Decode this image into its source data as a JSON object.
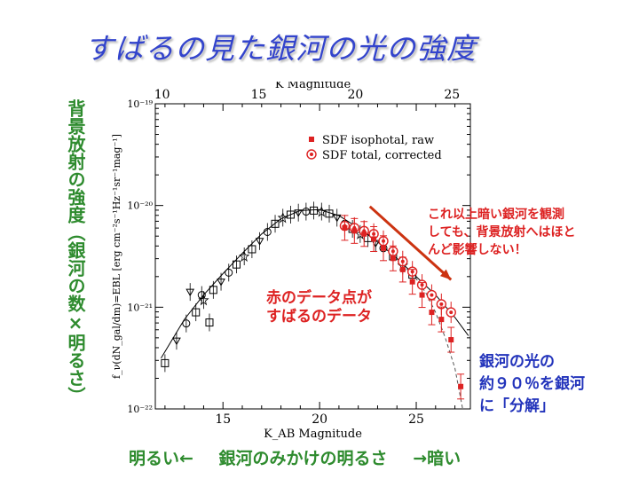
{
  "title": "すばるの見た銀河の光の強度",
  "y_side_label": "背景放射の強度（銀河の数×明るさ）",
  "annotations": {
    "top_right": [
      "これ以上暗い銀河を観測",
      "しても、背景放射へはほと",
      "んど影響しない！"
    ],
    "middle": [
      "赤のデータ点が",
      "すばるのデータ"
    ],
    "bottom_right": [
      "銀河の光の",
      "約９０％を銀河",
      "に「分解」"
    ]
  },
  "bottom_axis_text": {
    "left": "明るい←",
    "center": "銀河のみかけの明るさ",
    "right": "→暗い"
  },
  "colors": {
    "title": "#3344cc",
    "green": "#2e8b2e",
    "red": "#dd2222",
    "blue": "#2233bb"
  },
  "chart_data": {
    "type": "scatter",
    "xlabel": "K_AB Magnitude",
    "top_xlabel": "K Magnitude",
    "ylabel": "f_ν(dN_gal/dm)=EBL [erg cm⁻²s⁻¹Hz⁻¹sr⁻¹mag⁻¹]",
    "xlim": [
      11.5,
      27.8
    ],
    "ylim_log10": [
      -22,
      -19
    ],
    "x_ticks": [
      15,
      20,
      25
    ],
    "top_x_ticks": [
      10,
      15,
      20,
      25
    ],
    "top_x_offset": 1.85,
    "y_ticks": [
      -22,
      -21,
      -20,
      -19
    ],
    "y_tick_labels": [
      "10⁻²²",
      "10⁻²¹",
      "10⁻²⁰",
      "10⁻¹⁹"
    ],
    "legend": [
      "SDF isophotal, raw",
      "SDF total, corrected"
    ],
    "legend_placement": "top-right",
    "series": [
      {
        "name": "SDF isophotal, raw",
        "marker": "filled-square",
        "points": [
          [
            21.3,
            -20.22
          ],
          [
            21.8,
            -20.25
          ],
          [
            22.3,
            -20.28
          ],
          [
            22.8,
            -20.33
          ],
          [
            23.3,
            -20.42
          ],
          [
            23.8,
            -20.52
          ],
          [
            24.3,
            -20.63
          ],
          [
            24.8,
            -20.75
          ],
          [
            25.3,
            -20.88
          ],
          [
            25.8,
            -21.05
          ],
          [
            26.3,
            -21.12
          ],
          [
            26.8,
            -21.32
          ],
          [
            27.3,
            -21.78
          ]
        ]
      },
      {
        "name": "SDF total, corrected",
        "marker": "circled-dot",
        "points": [
          [
            21.3,
            -20.2
          ],
          [
            21.8,
            -20.22
          ],
          [
            22.3,
            -20.25
          ],
          [
            22.8,
            -20.28
          ],
          [
            23.3,
            -20.35
          ],
          [
            23.8,
            -20.45
          ],
          [
            24.3,
            -20.55
          ],
          [
            24.8,
            -20.65
          ],
          [
            25.3,
            -20.78
          ],
          [
            25.8,
            -20.88
          ],
          [
            26.3,
            -20.97
          ],
          [
            26.8,
            -21.05
          ]
        ]
      },
      {
        "name": "other surveys",
        "marker": "open-symbols",
        "points": [
          [
            12.0,
            -21.55
          ],
          [
            12.6,
            -21.33
          ],
          [
            13.1,
            -21.16
          ],
          [
            13.6,
            -21.05
          ],
          [
            14.0,
            -20.93
          ],
          [
            14.5,
            -20.83
          ],
          [
            14.9,
            -20.75
          ],
          [
            15.3,
            -20.66
          ],
          [
            15.7,
            -20.58
          ],
          [
            16.1,
            -20.5
          ],
          [
            16.5,
            -20.43
          ],
          [
            16.9,
            -20.35
          ],
          [
            17.3,
            -20.26
          ],
          [
            17.7,
            -20.18
          ],
          [
            18.1,
            -20.12
          ],
          [
            18.5,
            -20.09
          ],
          [
            18.9,
            -20.07
          ],
          [
            19.3,
            -20.06
          ],
          [
            19.7,
            -20.05
          ],
          [
            20.1,
            -20.06
          ],
          [
            20.5,
            -20.08
          ],
          [
            20.9,
            -20.12
          ],
          [
            21.3,
            -20.18
          ],
          [
            21.7,
            -20.23
          ],
          [
            22.1,
            -20.28
          ],
          [
            22.5,
            -20.32
          ],
          [
            22.9,
            -20.37
          ],
          [
            23.3,
            -20.42
          ],
          [
            23.8,
            -20.5
          ],
          [
            24.3,
            -20.59
          ],
          [
            24.8,
            -20.68
          ],
          [
            13.3,
            -20.85
          ],
          [
            13.9,
            -20.88
          ],
          [
            14.3,
            -21.15
          ]
        ]
      }
    ],
    "model_solid": [
      [
        11.8,
        -21.5
      ],
      [
        13,
        -21.12
      ],
      [
        14,
        -20.88
      ],
      [
        15,
        -20.67
      ],
      [
        16,
        -20.47
      ],
      [
        17,
        -20.28
      ],
      [
        18,
        -20.13
      ],
      [
        19,
        -20.05
      ],
      [
        20,
        -20.04
      ],
      [
        21,
        -20.1
      ],
      [
        22,
        -20.22
      ],
      [
        23,
        -20.36
      ],
      [
        24,
        -20.52
      ],
      [
        25,
        -20.7
      ],
      [
        26,
        -20.88
      ],
      [
        27,
        -21.1
      ],
      [
        27.7,
        -21.28
      ]
    ],
    "model_dashed": [
      [
        24.5,
        -20.62
      ],
      [
        25,
        -20.72
      ],
      [
        25.5,
        -20.86
      ],
      [
        26,
        -21.05
      ],
      [
        26.5,
        -21.3
      ],
      [
        27,
        -21.6
      ],
      [
        27.4,
        -22.0
      ]
    ],
    "arrow": {
      "from": [
        22.6,
        -20.01
      ],
      "to": [
        26.8,
        -20.73
      ]
    }
  }
}
